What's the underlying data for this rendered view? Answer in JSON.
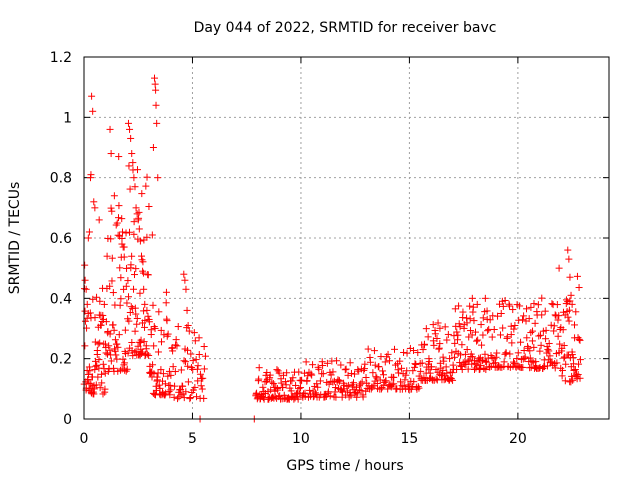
{
  "chart_data": {
    "type": "scatter",
    "title": "Day 044 of 2022, SRMTID for receiver bavc",
    "xlabel": "GPS time / hours",
    "ylabel": "SRMTID / TECUs",
    "xlim": [
      0,
      24.2
    ],
    "ylim": [
      0,
      1.2
    ],
    "xticks": [
      0,
      5,
      10,
      15,
      20
    ],
    "xtick_labels": [
      "0",
      "5",
      "10",
      "15",
      "20"
    ],
    "yticks": [
      0,
      0.2,
      0.4,
      0.6,
      0.8,
      1.0,
      1.2
    ],
    "ytick_labels": [
      "0",
      "0.2",
      "0.4",
      "0.6",
      "0.8",
      "1",
      "1.2"
    ],
    "grid": true,
    "marker": "plus",
    "color": "#ff0000",
    "series": [
      {
        "name": "SRMTID",
        "segments": [
          {
            "x_start": 0.0,
            "x_end": 1.0,
            "base": 0.16,
            "spread": 0.22,
            "count": 70
          },
          {
            "x_start": 1.0,
            "x_end": 2.0,
            "base": 0.28,
            "spread": 0.35,
            "count": 70
          },
          {
            "x_start": 2.0,
            "x_end": 3.0,
            "base": 0.35,
            "spread": 0.4,
            "count": 70
          },
          {
            "x_start": 3.0,
            "x_end": 4.0,
            "base": 0.15,
            "spread": 0.2,
            "count": 55
          },
          {
            "x_start": 4.0,
            "x_end": 5.6,
            "base": 0.12,
            "spread": 0.15,
            "count": 60
          },
          {
            "x_start": 7.9,
            "x_end": 10.0,
            "base": 0.09,
            "spread": 0.07,
            "count": 90
          },
          {
            "x_start": 10.0,
            "x_end": 13.0,
            "base": 0.1,
            "spread": 0.08,
            "count": 110
          },
          {
            "x_start": 13.0,
            "x_end": 15.5,
            "base": 0.13,
            "spread": 0.09,
            "count": 90
          },
          {
            "x_start": 15.5,
            "x_end": 17.0,
            "base": 0.17,
            "spread": 0.12,
            "count": 70
          },
          {
            "x_start": 17.0,
            "x_end": 18.6,
            "base": 0.22,
            "spread": 0.16,
            "count": 80
          },
          {
            "x_start": 18.6,
            "x_end": 20.5,
            "base": 0.22,
            "spread": 0.14,
            "count": 80
          },
          {
            "x_start": 20.5,
            "x_end": 22.0,
            "base": 0.22,
            "spread": 0.15,
            "count": 70
          },
          {
            "x_start": 22.0,
            "x_end": 22.9,
            "base": 0.2,
            "spread": 0.22,
            "count": 50
          }
        ],
        "points": [
          [
            0.03,
            0.51
          ],
          [
            0.05,
            0.46
          ],
          [
            0.1,
            0.43
          ],
          [
            0.15,
            0.38
          ],
          [
            0.2,
            0.6
          ],
          [
            0.25,
            0.62
          ],
          [
            0.3,
            0.8
          ],
          [
            0.32,
            0.81
          ],
          [
            0.35,
            1.07
          ],
          [
            0.4,
            1.02
          ],
          [
            0.45,
            0.72
          ],
          [
            0.5,
            0.7
          ],
          [
            0.7,
            0.66
          ],
          [
            0.9,
            0.33
          ],
          [
            1.1,
            0.29
          ],
          [
            1.2,
            0.96
          ],
          [
            1.25,
            0.88
          ],
          [
            1.4,
            0.74
          ],
          [
            1.6,
            0.87
          ],
          [
            1.75,
            0.58
          ],
          [
            1.85,
            0.57
          ],
          [
            1.95,
            0.44
          ],
          [
            2.05,
            0.98
          ],
          [
            2.1,
            0.96
          ],
          [
            2.15,
            0.93
          ],
          [
            2.2,
            0.88
          ],
          [
            2.25,
            0.85
          ],
          [
            2.3,
            0.8
          ],
          [
            2.35,
            0.77
          ],
          [
            2.4,
            0.7
          ],
          [
            2.45,
            0.68
          ],
          [
            2.5,
            0.66
          ],
          [
            2.55,
            0.63
          ],
          [
            2.6,
            0.59
          ],
          [
            2.65,
            0.54
          ],
          [
            2.7,
            0.49
          ],
          [
            2.75,
            0.43
          ],
          [
            2.8,
            0.38
          ],
          [
            2.9,
            0.36
          ],
          [
            3.0,
            0.33
          ],
          [
            3.1,
            0.28
          ],
          [
            3.15,
            0.61
          ],
          [
            3.2,
            0.9
          ],
          [
            3.25,
            1.13
          ],
          [
            3.28,
            1.11
          ],
          [
            3.3,
            1.09
          ],
          [
            3.32,
            1.04
          ],
          [
            3.35,
            0.98
          ],
          [
            3.4,
            0.8
          ],
          [
            3.8,
            0.42
          ],
          [
            4.6,
            0.48
          ],
          [
            4.65,
            0.46
          ],
          [
            4.7,
            0.43
          ],
          [
            4.75,
            0.36
          ],
          [
            4.8,
            0.31
          ],
          [
            5.35,
            0.0
          ],
          [
            7.85,
            0.0
          ],
          [
            21.9,
            0.5
          ],
          [
            22.3,
            0.56
          ],
          [
            22.35,
            0.53
          ],
          [
            22.4,
            0.47
          ],
          [
            22.45,
            0.41
          ],
          [
            22.5,
            0.38
          ],
          [
            17.9,
            0.4
          ],
          [
            18.5,
            0.4
          ],
          [
            20.6,
            0.37
          ],
          [
            15.9,
            0.2
          ],
          [
            16.4,
            0.25
          ]
        ]
      }
    ]
  }
}
